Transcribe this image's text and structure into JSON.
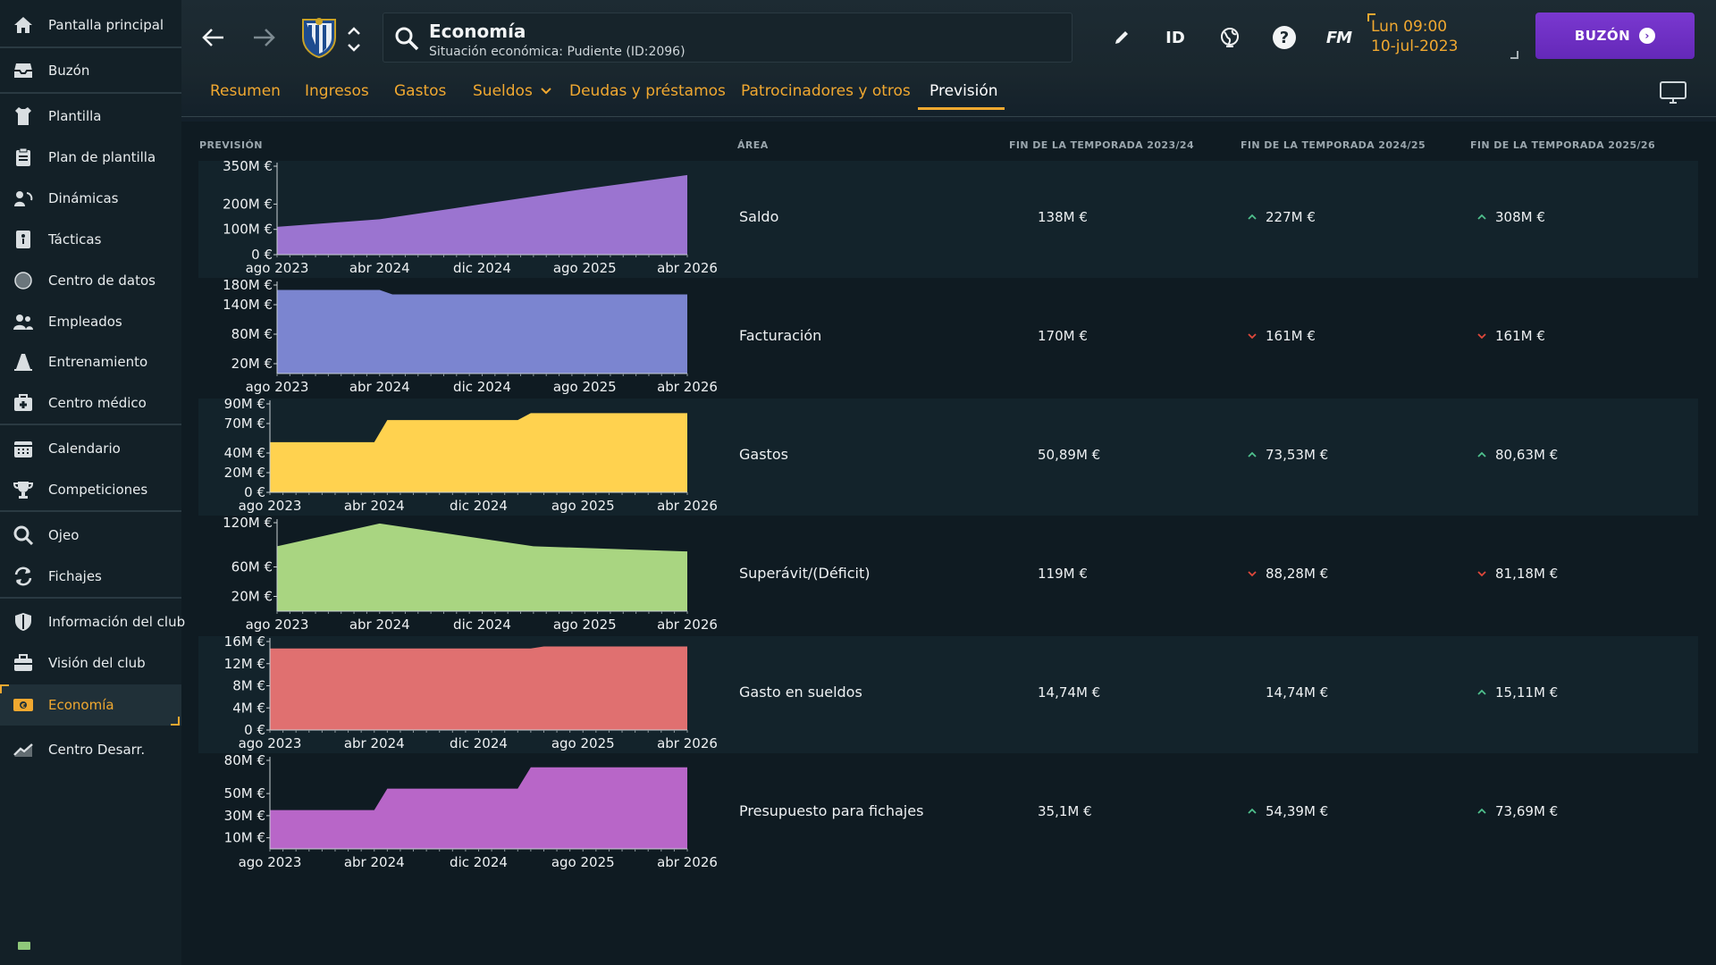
{
  "sidebar": {
    "items": [
      {
        "label": "Pantalla principal",
        "icon": "home-icon"
      },
      {
        "label": "Buzón",
        "icon": "inbox-icon"
      },
      {
        "label": "Plantilla",
        "icon": "shirt-icon"
      },
      {
        "label": "Plan de plantilla",
        "icon": "clipboard-icon"
      },
      {
        "label": "Dinámicas",
        "icon": "dynamics-icon"
      },
      {
        "label": "Tácticas",
        "icon": "tactics-board-icon"
      },
      {
        "label": "Centro de datos",
        "icon": "data-hub-icon"
      },
      {
        "label": "Empleados",
        "icon": "staff-icon"
      },
      {
        "label": "Entrenamiento",
        "icon": "training-cone-icon"
      },
      {
        "label": "Centro médico",
        "icon": "medical-kit-icon"
      },
      {
        "label": "Calendario",
        "icon": "calendar-icon"
      },
      {
        "label": "Competiciones",
        "icon": "trophy-icon"
      },
      {
        "label": "Ojeo",
        "icon": "scouting-magnifier-icon"
      },
      {
        "label": "Fichajes",
        "icon": "transfers-icon"
      },
      {
        "label": "Información del club",
        "icon": "club-shield-icon"
      },
      {
        "label": "Visión del club",
        "icon": "briefcase-icon"
      },
      {
        "label": "Economía",
        "icon": "finances-icon",
        "active": true
      },
      {
        "label": "Centro Desarr.",
        "icon": "development-trend-icon"
      }
    ]
  },
  "header": {
    "title": "Economía",
    "subtitle": "Situación económica: Pudiente (ID:2096)",
    "id_label": "ID",
    "fm_label": "FM",
    "time": "Lun 09:00",
    "date": "10-jul-2023",
    "inbox_button": "BUZÓN"
  },
  "tabs": [
    {
      "label": "Resumen"
    },
    {
      "label": "Ingresos"
    },
    {
      "label": "Gastos"
    },
    {
      "label": "Sueldos"
    },
    {
      "label": "Deudas y préstamos"
    },
    {
      "label": "Patrocinadores y otros"
    },
    {
      "label": "Previsión",
      "active": true
    }
  ],
  "table": {
    "headers": {
      "forecast": "PREVISIÓN",
      "area": "ÁREA",
      "season1": "FIN DE LA TEMPORADA 2023/24",
      "season2": "FIN DE LA TEMPORADA 2024/25",
      "season3": "FIN DE LA TEMPORADA 2025/26"
    },
    "rows": [
      {
        "area": "Saldo",
        "s1": "138M €",
        "s2": "227M €",
        "s2_trend": "up",
        "s3": "308M €",
        "s3_trend": "up"
      },
      {
        "area": "Facturación",
        "s1": "170M €",
        "s2": "161M €",
        "s2_trend": "down",
        "s3": "161M €",
        "s3_trend": "down"
      },
      {
        "area": "Gastos",
        "s1": "50,89M €",
        "s2": "73,53M €",
        "s2_trend": "up",
        "s3": "80,63M €",
        "s3_trend": "up"
      },
      {
        "area": "Superávit/(Déficit)",
        "s1": "119M €",
        "s2": "88,28M €",
        "s2_trend": "down",
        "s3": "81,18M €",
        "s3_trend": "down"
      },
      {
        "area": "Gasto en sueldos",
        "s1": "14,74M €",
        "s2": "14,74M €",
        "s2_trend": "none",
        "s3": "15,11M €",
        "s3_trend": "up"
      },
      {
        "area": "Presupuesto para fichajes",
        "s1": "35,1M €",
        "s2": "54,39M €",
        "s2_trend": "up",
        "s3": "73,69M €",
        "s3_trend": "up"
      }
    ]
  },
  "colors": {
    "accent": "#f0a830",
    "trend_up": "#4fc08d",
    "trend_down": "#e0483c",
    "inbox_purple": "#6f30c8"
  },
  "chart_data": [
    {
      "type": "area",
      "x": [
        "ago 2023",
        "abr 2024",
        "dic 2024",
        "ago 2025",
        "abr 2026"
      ],
      "xticks": [
        "ago 2023",
        "abr 2024",
        "dic 2024",
        "ago 2025",
        "abr 2026"
      ],
      "yticks": [
        "0 €",
        "100M €",
        "200M €",
        "350M €"
      ],
      "ytick_values": [
        0,
        100,
        200,
        350
      ],
      "ylim": [
        0,
        350
      ],
      "values": [
        110,
        140,
        200,
        260,
        315
      ],
      "color": "#9b74d0"
    },
    {
      "type": "area",
      "x": [
        "ago 2023",
        "abr 2024",
        "may 2024",
        "dic 2024",
        "ago 2025",
        "abr 2026"
      ],
      "xticks": [
        "ago 2023",
        "abr 2024",
        "dic 2024",
        "ago 2025",
        "abr 2026"
      ],
      "yticks": [
        "20M €",
        "80M €",
        "140M €",
        "180M €"
      ],
      "ytick_values": [
        20,
        80,
        140,
        180
      ],
      "ylim": [
        0,
        180
      ],
      "values": [
        170,
        170,
        161,
        161,
        161,
        161
      ],
      "color": "#7b85d0"
    },
    {
      "type": "area",
      "x": [
        "ago 2023",
        "abr 2024",
        "may 2024",
        "mar 2025",
        "abr 2025",
        "abr 2026"
      ],
      "xticks": [
        "ago 2023",
        "abr 2024",
        "dic 2024",
        "ago 2025",
        "abr 2026"
      ],
      "yticks": [
        "0 €",
        "20M €",
        "40M €",
        "70M €",
        "90M €"
      ],
      "ytick_values": [
        0,
        20,
        40,
        70,
        90
      ],
      "ylim": [
        0,
        90
      ],
      "values": [
        51,
        51,
        73.5,
        73.5,
        80.6,
        80.6
      ],
      "color": "#ffd24f"
    },
    {
      "type": "area",
      "x": [
        "ago 2023",
        "abr 2024",
        "abr 2025",
        "abr 2026"
      ],
      "xticks": [
        "ago 2023",
        "abr 2024",
        "dic 2024",
        "ago 2025",
        "abr 2026"
      ],
      "yticks": [
        "20M €",
        "60M €",
        "120M €"
      ],
      "ytick_values": [
        20,
        60,
        120
      ],
      "ylim": [
        0,
        120
      ],
      "values": [
        88,
        119,
        88,
        81
      ],
      "color": "#a9d581"
    },
    {
      "type": "area",
      "x": [
        "ago 2023",
        "abr 2025",
        "may 2025",
        "abr 2026"
      ],
      "xticks": [
        "ago 2023",
        "abr 2024",
        "dic 2024",
        "ago 2025",
        "abr 2026"
      ],
      "yticks": [
        "0 €",
        "4M €",
        "8M €",
        "12M €",
        "16M €"
      ],
      "ytick_values": [
        0,
        4,
        8,
        12,
        16
      ],
      "ylim": [
        0,
        16
      ],
      "values": [
        14.74,
        14.74,
        15.11,
        15.11
      ],
      "color": "#e07070"
    },
    {
      "type": "area",
      "x": [
        "ago 2023",
        "abr 2024",
        "may 2024",
        "mar 2025",
        "abr 2025",
        "abr 2026"
      ],
      "xticks": [
        "ago 2023",
        "abr 2024",
        "dic 2024",
        "ago 2025",
        "abr 2026"
      ],
      "yticks": [
        "10M €",
        "30M €",
        "50M €",
        "80M €"
      ],
      "ytick_values": [
        10,
        30,
        50,
        80
      ],
      "ylim": [
        0,
        80
      ],
      "values": [
        35.1,
        35.1,
        54.4,
        54.4,
        73.7,
        73.7
      ],
      "color": "#b866c8"
    }
  ]
}
